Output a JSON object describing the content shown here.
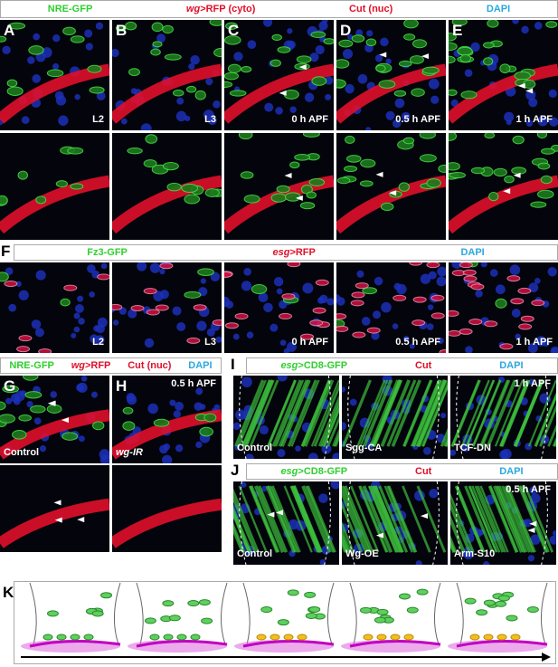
{
  "panels_A_E": {
    "legend": [
      {
        "text": "NRE-GFP",
        "color": "#2fcf2f"
      },
      {
        "italic": "wg",
        "text": ">RFP (cyto)",
        "color": "#e0102a"
      },
      {
        "text": "Cut (nuc)",
        "color": "#e0102a"
      },
      {
        "text": "DAPI",
        "color": "#2aa8e0"
      }
    ],
    "panels": [
      {
        "letter": "A",
        "stage": "L2"
      },
      {
        "letter": "B",
        "stage": "L3"
      },
      {
        "letter": "C",
        "stage": "0 h APF"
      },
      {
        "letter": "D",
        "stage": "0.5 h APF"
      },
      {
        "letter": "E",
        "stage": "1 h APF"
      }
    ]
  },
  "panel_F": {
    "letter": "F",
    "legend": [
      {
        "text": "Fz3-GFP",
        "color": "#2fcf2f"
      },
      {
        "italic": "esg",
        "text": ">RFP",
        "color": "#e0102a"
      },
      {
        "text": "DAPI",
        "color": "#2aa8e0"
      }
    ],
    "stages": [
      "L2",
      "L3",
      "0 h APF",
      "0.5 h APF",
      "1 h APF"
    ]
  },
  "panels_G_H": {
    "legend": [
      {
        "text": "NRE-GFP",
        "color": "#2fcf2f"
      },
      {
        "italic": "wg",
        "text": ">RFP",
        "color": "#e0102a"
      },
      {
        "text": "Cut (nuc)",
        "color": "#e0102a"
      },
      {
        "text": "DAPI",
        "color": "#2aa8e0"
      }
    ],
    "panels": [
      {
        "letter": "G",
        "label": "Control"
      },
      {
        "letter": "H",
        "stage": "0.5 h APF",
        "label": "wg-IR"
      }
    ]
  },
  "panel_I": {
    "letter": "I",
    "legend": [
      {
        "italic": "esg",
        "text": ">CD8-GFP",
        "color": "#2fcf2f"
      },
      {
        "text": "Cut",
        "color": "#e0102a"
      },
      {
        "text": "DAPI",
        "color": "#2aa8e0"
      }
    ],
    "stage": "1 h APF",
    "conditions": [
      "Control",
      "Sgg-CA",
      "TCF-DN"
    ]
  },
  "panel_J": {
    "letter": "J",
    "legend": [
      {
        "italic": "esg",
        "text": ">CD8-GFP",
        "color": "#2fcf2f"
      },
      {
        "text": "Cut",
        "color": "#e0102a"
      },
      {
        "text": "DAPI",
        "color": "#2aa8e0"
      }
    ],
    "stage": "0.5 h APF",
    "conditions": [
      "Control",
      "Wg-OE",
      "Arm-S10"
    ]
  },
  "panel_K": {
    "letter": "K"
  }
}
